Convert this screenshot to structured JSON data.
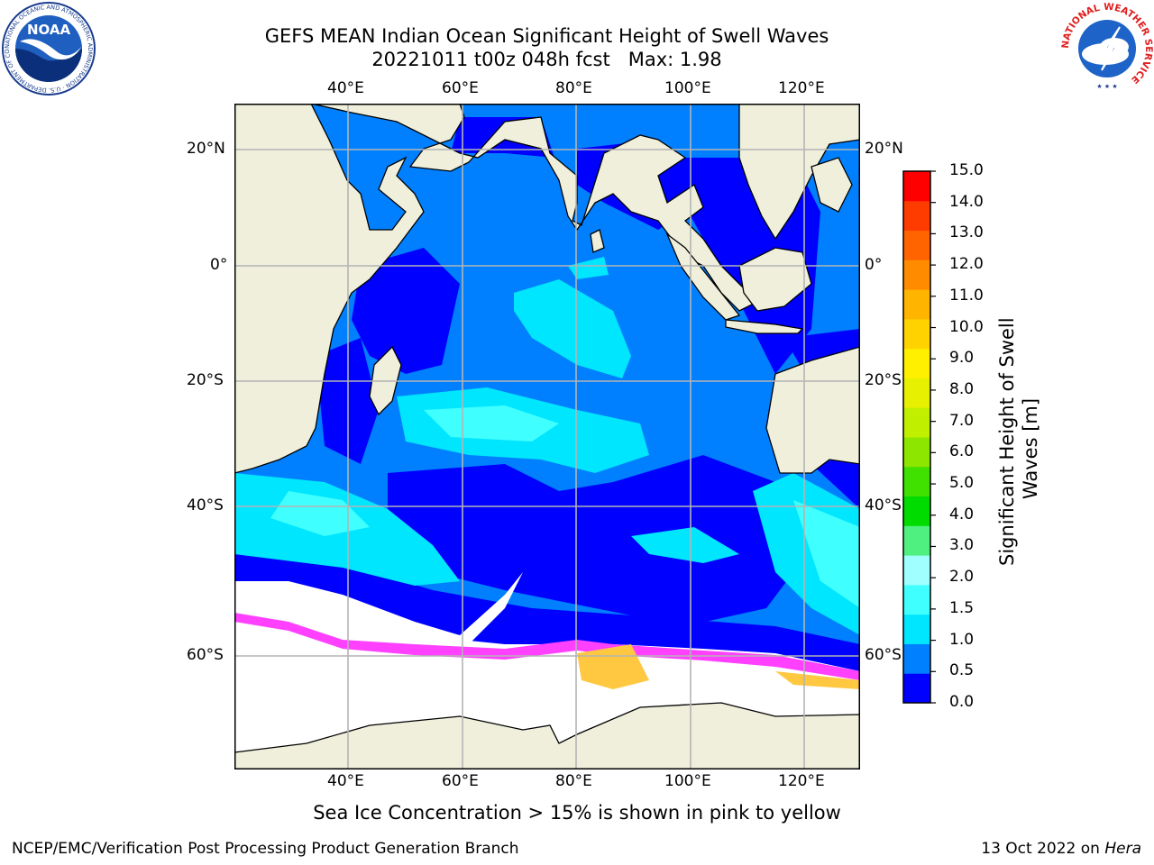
{
  "title": {
    "line1": "GEFS MEAN Indian Ocean Significant Height of Swell Waves",
    "line2": "20221011 t00z 048h fcst   Max: 1.98"
  },
  "map": {
    "lon_labels": [
      "40°E",
      "60°E",
      "80°E",
      "100°E",
      "120°E"
    ],
    "lat_labels_left": [
      "20°N",
      "0°",
      "20°S",
      "40°S",
      "60°S"
    ],
    "lat_labels_right": [
      "20°N",
      "0°",
      "20°S",
      "40°S",
      "60°S"
    ],
    "colors": {
      "land": "#efefdc",
      "ocean_low": "#0000ff",
      "ocean_mid": "#0080ff",
      "ocean_high": "#00ffff",
      "ocean_top": "#40ffff",
      "ice_free": "#ffffff",
      "sea_ice_pink": "#ff40ff",
      "sea_ice_yellow": "#ffc840",
      "grid": "#b4b4b4"
    }
  },
  "colorbar": {
    "title_line1": "Significant Height of Swell",
    "title_line2": "Waves [m]",
    "labels": [
      "0.0",
      "0.5",
      "1.0",
      "1.5",
      "2.0",
      "3.0",
      "4.0",
      "5.0",
      "6.0",
      "7.0",
      "8.0",
      "9.0",
      "10.0",
      "11.0",
      "12.0",
      "13.0",
      "14.0",
      "15.0"
    ],
    "colors": [
      "#0000ff",
      "#0080ff",
      "#00e6ff",
      "#40ffff",
      "#a0ffff",
      "#50f080",
      "#00dc00",
      "#40e000",
      "#8ce600",
      "#c0f000",
      "#e6f000",
      "#fff000",
      "#ffd200",
      "#ffb400",
      "#ff8c00",
      "#ff6400",
      "#ff3c00",
      "#ff0000"
    ]
  },
  "caption": "Sea Ice Concentration > 15% is shown in pink to yellow",
  "footer": {
    "left": "NCEP/EMC/Verification Post Processing Product Generation Branch",
    "right_prefix": "13 Oct 2022 on ",
    "right_machine": "Hera"
  },
  "logos": {
    "noaa_text": "NOAA",
    "noaa_ring": "NATIONAL OCEANIC AND ATMOSPHERIC ADMINISTRATION · U.S. DEPARTMENT OF COMMERCE",
    "nws_ring": "NATIONAL WEATHER SERVICE"
  }
}
